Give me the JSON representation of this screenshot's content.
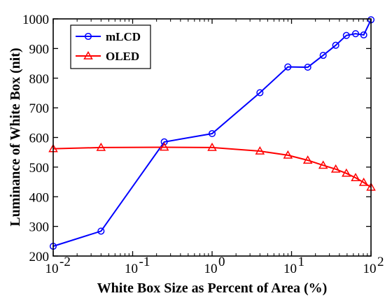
{
  "chart_data": {
    "type": "line",
    "xlabel": "White Box Size as Percent of Area (%)",
    "ylabel": "Luminance of White Box (nit)",
    "xscale": "log",
    "xlim": [
      0.01,
      100
    ],
    "ylim": [
      200,
      1000
    ],
    "x_ticks": [
      0.01,
      0.1,
      1,
      10,
      100
    ],
    "x_tick_labels": [
      {
        "base": "10",
        "exp": "-2"
      },
      {
        "base": "10",
        "exp": "-1"
      },
      {
        "base": "10",
        "exp": "0"
      },
      {
        "base": "10",
        "exp": "1"
      },
      {
        "base": "10",
        "exp": "2"
      }
    ],
    "y_ticks": [
      200,
      300,
      400,
      500,
      600,
      700,
      800,
      900,
      1000
    ],
    "y_tick_labels": [
      "200",
      "300",
      "400",
      "500",
      "600",
      "700",
      "800",
      "900",
      "1000"
    ],
    "grid": false,
    "legend_position": "top-left",
    "series": [
      {
        "name": "mLCD",
        "color": "#0000ff",
        "marker": "circle",
        "points": [
          [
            0.01,
            233
          ],
          [
            0.04,
            284
          ],
          [
            0.25,
            585
          ],
          [
            1,
            613
          ],
          [
            4,
            751
          ],
          [
            9,
            838
          ],
          [
            16,
            837
          ],
          [
            25,
            877
          ],
          [
            36,
            911
          ],
          [
            49,
            944
          ],
          [
            64,
            950
          ],
          [
            81,
            946
          ],
          [
            100,
            997
          ]
        ]
      },
      {
        "name": "OLED",
        "color": "#ff0000",
        "marker": "triangle",
        "points": [
          [
            0.01,
            562
          ],
          [
            0.04,
            566
          ],
          [
            0.25,
            567
          ],
          [
            1,
            566
          ],
          [
            4,
            554
          ],
          [
            9,
            540
          ],
          [
            16,
            523
          ],
          [
            25,
            506
          ],
          [
            36,
            493
          ],
          [
            49,
            479
          ],
          [
            64,
            464
          ],
          [
            81,
            448
          ],
          [
            100,
            432
          ]
        ]
      }
    ]
  }
}
